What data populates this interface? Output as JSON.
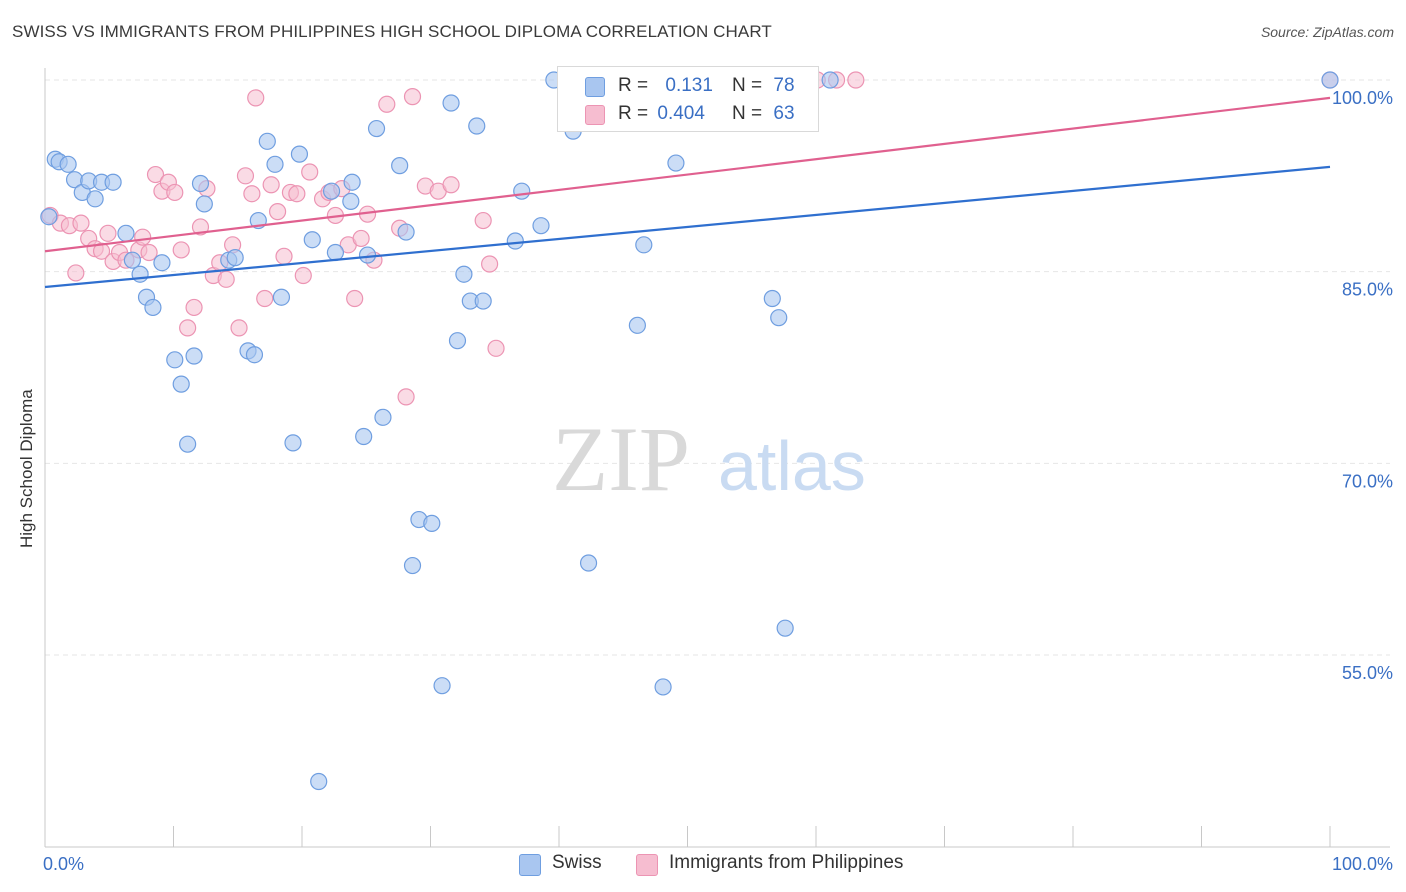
{
  "title": "SWISS VS IMMIGRANTS FROM PHILIPPINES HIGH SCHOOL DIPLOMA CORRELATION CHART",
  "source": "Source: ZipAtlas.com",
  "watermark": {
    "zip": "ZIP",
    "atlas": "atlas"
  },
  "legend_top": {
    "rows": [
      {
        "r_label": "R =",
        "r_value": "0.131",
        "n_label": "N =",
        "n_value": "78"
      },
      {
        "r_label": "R =",
        "r_value": "0.404",
        "n_label": "N =",
        "n_value": "63"
      }
    ]
  },
  "legend_bottom": {
    "items": [
      "Swiss",
      "Immigrants from Philippines"
    ]
  },
  "colors": {
    "swiss_fill": "#a9c6f0",
    "swiss_stroke": "#6f9ee0",
    "swiss_line": "#2f6fcf",
    "phil_fill": "#f6bdd0",
    "phil_stroke": "#ec94b3",
    "phil_line": "#e0608f",
    "tick_label": "#3a6fc4",
    "grid": "#e6e6e6"
  },
  "chart_data": {
    "type": "scatter",
    "title": "SWISS VS IMMIGRANTS FROM PHILIPPINES HIGH SCHOOL DIPLOMA CORRELATION CHART",
    "xlabel": "",
    "ylabel": "High School Diploma",
    "xlim": [
      0,
      100
    ],
    "ylim": [
      40,
      100.5
    ],
    "x_tick_labels": [
      "0.0%",
      "100.0%"
    ],
    "y_ticks": [
      55,
      70,
      85,
      100
    ],
    "y_tick_labels": [
      "55.0%",
      "70.0%",
      "85.0%",
      "100.0%"
    ],
    "grid": true,
    "legend_position": "top-center",
    "series": [
      {
        "name": "Swiss",
        "r": 0.131,
        "n": 78,
        "trend": {
          "x": [
            0,
            100
          ],
          "y": [
            83.8,
            93.2
          ]
        },
        "points": [
          [
            0.3,
            89.3
          ],
          [
            0.8,
            93.8
          ],
          [
            1.1,
            93.6
          ],
          [
            1.8,
            93.4
          ],
          [
            2.3,
            92.2
          ],
          [
            2.9,
            91.2
          ],
          [
            3.4,
            92.1
          ],
          [
            3.9,
            90.7
          ],
          [
            4.4,
            92.0
          ],
          [
            5.3,
            92.0
          ],
          [
            6.3,
            88.0
          ],
          [
            6.8,
            85.9
          ],
          [
            7.4,
            84.8
          ],
          [
            7.9,
            83.0
          ],
          [
            8.4,
            82.2
          ],
          [
            9.1,
            85.7
          ],
          [
            10.1,
            78.1
          ],
          [
            10.6,
            76.2
          ],
          [
            11.1,
            71.5
          ],
          [
            11.6,
            78.4
          ],
          [
            12.1,
            91.9
          ],
          [
            12.4,
            90.3
          ],
          [
            14.3,
            85.9
          ],
          [
            14.8,
            86.1
          ],
          [
            15.8,
            78.8
          ],
          [
            16.3,
            78.5
          ],
          [
            16.6,
            89.0
          ],
          [
            17.3,
            95.2
          ],
          [
            17.9,
            93.4
          ],
          [
            18.4,
            83.0
          ],
          [
            19.3,
            71.6
          ],
          [
            19.8,
            94.2
          ],
          [
            20.8,
            87.5
          ],
          [
            21.3,
            45.1
          ],
          [
            22.3,
            91.3
          ],
          [
            22.6,
            86.5
          ],
          [
            23.8,
            90.5
          ],
          [
            23.9,
            92.0
          ],
          [
            24.8,
            72.1
          ],
          [
            25.1,
            86.3
          ],
          [
            25.8,
            96.2
          ],
          [
            26.3,
            73.6
          ],
          [
            27.6,
            93.3
          ],
          [
            28.1,
            88.1
          ],
          [
            28.6,
            62.0
          ],
          [
            29.1,
            65.6
          ],
          [
            30.1,
            65.3
          ],
          [
            30.9,
            52.6
          ],
          [
            31.6,
            98.2
          ],
          [
            32.1,
            79.6
          ],
          [
            32.6,
            84.8
          ],
          [
            33.1,
            82.7
          ],
          [
            33.6,
            96.4
          ],
          [
            34.1,
            82.7
          ],
          [
            36.6,
            87.4
          ],
          [
            37.1,
            91.3
          ],
          [
            38.6,
            88.6
          ],
          [
            39.6,
            100.0
          ],
          [
            41.1,
            96.0
          ],
          [
            41.6,
            100.0
          ],
          [
            42.3,
            62.2
          ],
          [
            43.1,
            100.0
          ],
          [
            44.1,
            96.7
          ],
          [
            44.6,
            100.0
          ],
          [
            46.1,
            80.8
          ],
          [
            46.6,
            87.1
          ],
          [
            48.1,
            52.5
          ],
          [
            49.1,
            93.5
          ],
          [
            49.1,
            100.0
          ],
          [
            51.6,
            100.0
          ],
          [
            56.6,
            82.9
          ],
          [
            57.1,
            81.4
          ],
          [
            57.6,
            57.1
          ],
          [
            58.6,
            100.0
          ],
          [
            61.1,
            100.0
          ],
          [
            100.0,
            100.0
          ]
        ]
      },
      {
        "name": "Immigrants from Philippines",
        "r": 0.404,
        "n": 63,
        "trend": {
          "x": [
            0,
            100
          ],
          "y": [
            86.6,
            98.6
          ]
        },
        "points": [
          [
            0.4,
            89.4
          ],
          [
            1.2,
            88.8
          ],
          [
            1.9,
            88.6
          ],
          [
            2.4,
            84.9
          ],
          [
            2.8,
            88.8
          ],
          [
            3.4,
            87.6
          ],
          [
            3.9,
            86.8
          ],
          [
            4.4,
            86.6
          ],
          [
            4.9,
            88.0
          ],
          [
            5.3,
            85.8
          ],
          [
            5.8,
            86.5
          ],
          [
            6.3,
            85.9
          ],
          [
            7.3,
            86.7
          ],
          [
            7.6,
            87.7
          ],
          [
            8.1,
            86.5
          ],
          [
            8.6,
            92.6
          ],
          [
            9.1,
            91.3
          ],
          [
            9.6,
            92.0
          ],
          [
            10.1,
            91.2
          ],
          [
            10.6,
            86.7
          ],
          [
            11.1,
            80.6
          ],
          [
            11.6,
            82.2
          ],
          [
            12.1,
            88.5
          ],
          [
            12.6,
            91.5
          ],
          [
            13.1,
            84.7
          ],
          [
            13.6,
            85.7
          ],
          [
            14.1,
            84.4
          ],
          [
            14.6,
            87.1
          ],
          [
            15.1,
            80.6
          ],
          [
            15.6,
            92.5
          ],
          [
            16.1,
            91.1
          ],
          [
            16.4,
            98.6
          ],
          [
            17.1,
            82.9
          ],
          [
            17.6,
            91.8
          ],
          [
            18.1,
            89.7
          ],
          [
            18.6,
            86.2
          ],
          [
            19.1,
            91.2
          ],
          [
            19.6,
            91.1
          ],
          [
            20.1,
            84.7
          ],
          [
            20.6,
            92.8
          ],
          [
            21.6,
            90.7
          ],
          [
            22.1,
            91.2
          ],
          [
            22.6,
            89.4
          ],
          [
            23.1,
            91.5
          ],
          [
            23.6,
            87.1
          ],
          [
            24.1,
            82.9
          ],
          [
            24.6,
            87.6
          ],
          [
            25.1,
            89.5
          ],
          [
            25.6,
            85.9
          ],
          [
            26.6,
            98.1
          ],
          [
            27.6,
            88.4
          ],
          [
            28.1,
            75.2
          ],
          [
            28.6,
            98.7
          ],
          [
            29.6,
            91.7
          ],
          [
            30.6,
            91.3
          ],
          [
            31.6,
            91.8
          ],
          [
            34.1,
            89.0
          ],
          [
            34.6,
            85.6
          ],
          [
            35.1,
            79.0
          ],
          [
            60.1,
            100.0
          ],
          [
            61.6,
            100.0
          ],
          [
            63.1,
            100.0
          ],
          [
            100.0,
            100.0
          ]
        ]
      }
    ]
  }
}
